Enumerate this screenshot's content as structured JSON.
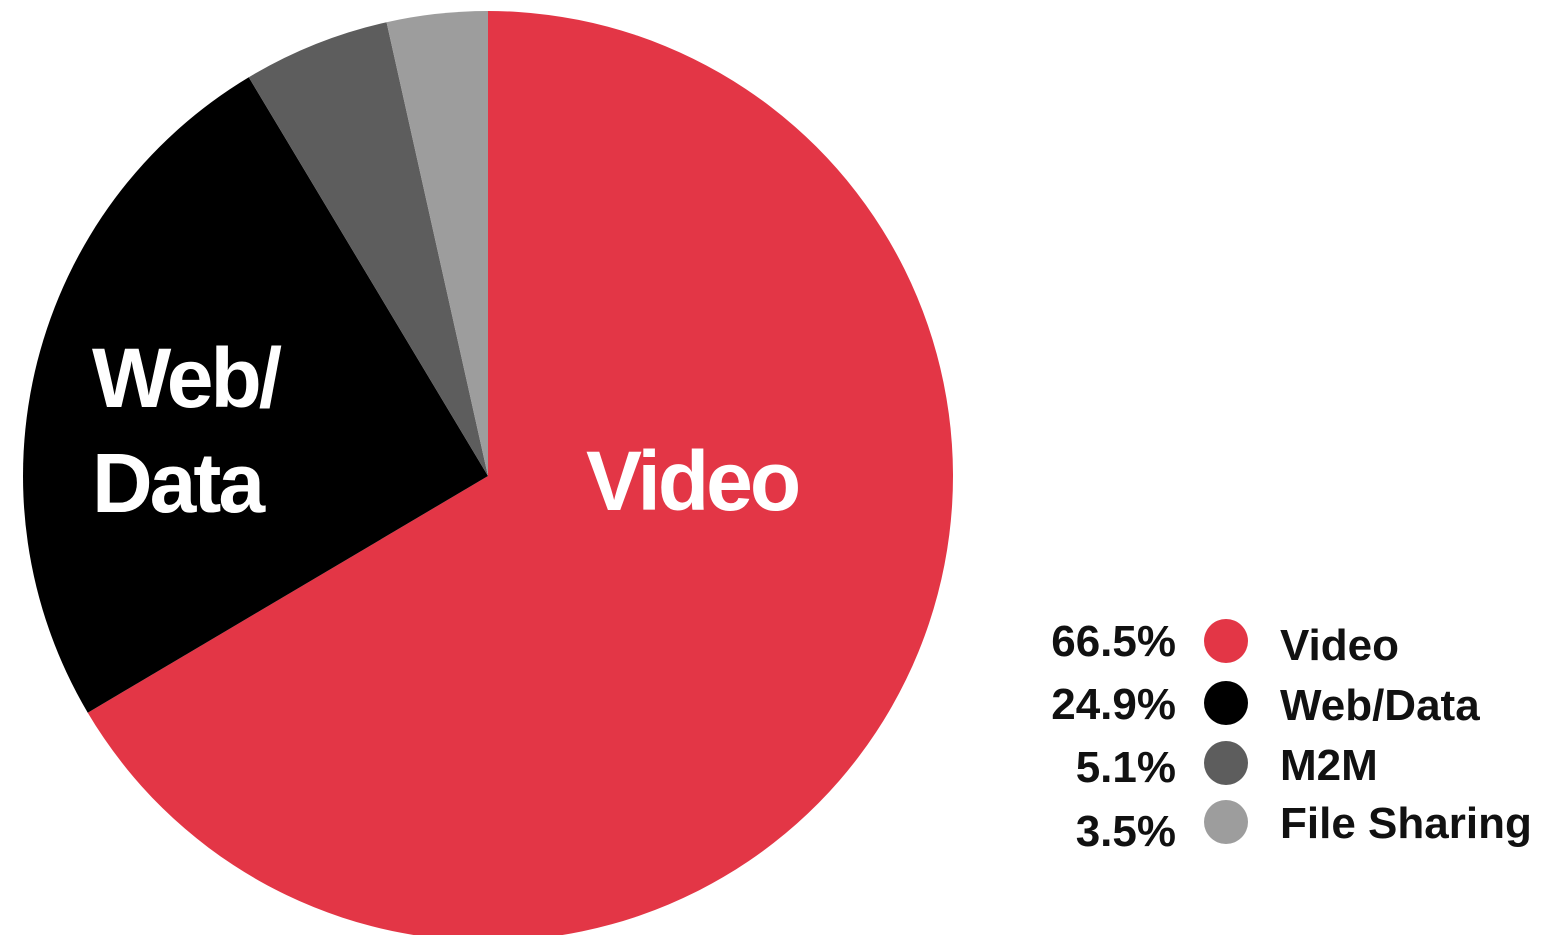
{
  "chart_data": {
    "type": "pie",
    "title": "",
    "slices": [
      {
        "name": "Video",
        "value": 66.5,
        "label": "66.5%",
        "color": "#e33646"
      },
      {
        "name": "Web/Data",
        "value": 24.9,
        "label": "24.9%",
        "color": "#000000"
      },
      {
        "name": "M2M",
        "value": 5.1,
        "label": "5.1%",
        "color": "#5d5d5d"
      },
      {
        "name": "File Sharing",
        "value": 3.5,
        "label": "3.5%",
        "color": "#9d9d9d"
      }
    ],
    "slice_labels": {
      "video": "Video",
      "web_line1": "Web/",
      "web_line2": "Data"
    },
    "legend_position": "bottom-right"
  }
}
